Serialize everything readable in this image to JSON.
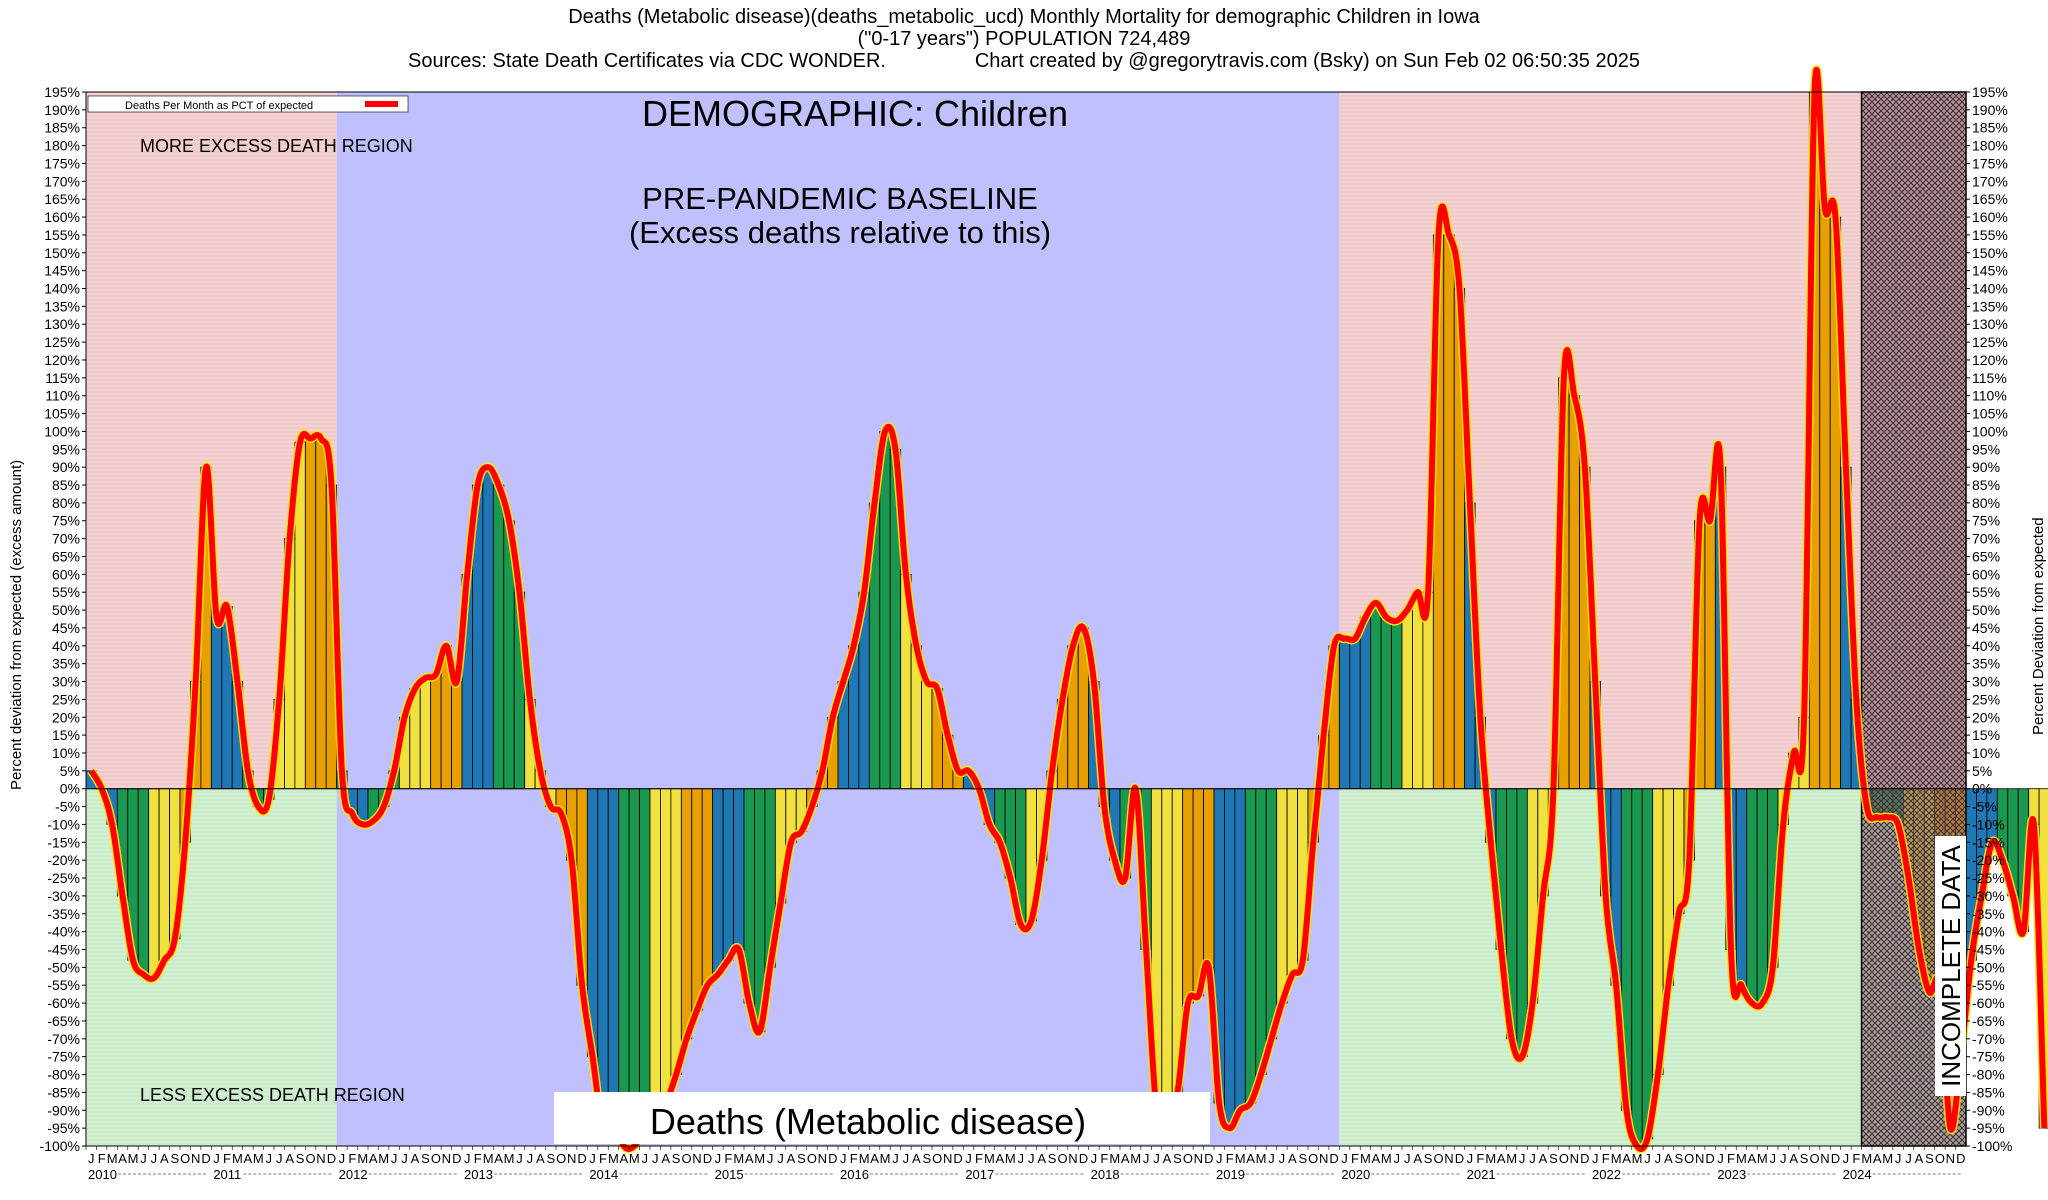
{
  "header": {
    "line1": "Deaths (Metabolic disease)(deaths_metabolic_ucd) Monthly Mortality for demographic Children in Iowa",
    "line2": "(\"0-17 years\") POPULATION 724,489",
    "line3": "Sources: State Death Certificates via CDC WONDER.                Chart created by @gregorytravis.com (Bsky) on Sun Feb 02 06:50:35 2025"
  },
  "annotations": {
    "demographic": "DEMOGRAPHIC: Children",
    "baseline_1": "PRE-PANDEMIC BASELINE",
    "baseline_2": "(Excess deaths relative to this)",
    "more_region": "MORE EXCESS DEATH REGION",
    "less_region": "LESS EXCESS DEATH REGION",
    "incomplete": "INCOMPLETE DATA",
    "bottom_label": "Deaths (Metabolic disease)",
    "legend": "Deaths Per Month as PCT of expected"
  },
  "axes": {
    "ylabel_left": "Percent deviation from expected (excess amount)",
    "ylabel_right": "Percent Deviation from expected"
  },
  "colors": {
    "pre_bg": "#c0c0ff",
    "excess_bg": "#f0c8c8",
    "deficit_bg": "#c8ecc8",
    "line": "#ff0000",
    "bar_cycle": [
      "#1f77b4",
      "#1f77b4",
      "#1f77b4",
      "#1a9850",
      "#1a9850",
      "#1a9850",
      "#f0e040",
      "#f0e040",
      "#f0e040",
      "#e8a000",
      "#e8a000",
      "#e8a000"
    ]
  },
  "chart_data": {
    "type": "bar",
    "title": "Deaths (Metabolic disease)(deaths_metabolic_ucd) Monthly Mortality for demographic Children in Iowa",
    "ylabel": "Percent deviation from expected (excess amount)",
    "ylim": [
      -100,
      195
    ],
    "ytick_step": 5,
    "start": "2010-01",
    "month_letters": [
      "J",
      "F",
      "M",
      "A",
      "M",
      "J",
      "J",
      "A",
      "S",
      "O",
      "N",
      "D"
    ],
    "years": [
      "2010",
      "2011",
      "2012",
      "2013",
      "2014",
      "2015",
      "2016",
      "2017",
      "2018",
      "2019",
      "2020",
      "2021",
      "2022",
      "2023",
      "2024"
    ],
    "pre_pandemic_range": [
      "2012-01",
      "2019-12"
    ],
    "incomplete_from": "2024-03",
    "series": [
      {
        "name": "Deaths Per Month as PCT of expected",
        "values": [
          5,
          0,
          -10,
          -30,
          -48,
          -52,
          -53,
          -48,
          -42,
          -15,
          30,
          90,
          48,
          51,
          30,
          5,
          -5,
          -3,
          25,
          70,
          97,
          98,
          98,
          85,
          5,
          -7,
          -10,
          -9,
          -5,
          5,
          20,
          28,
          31,
          32,
          40,
          30,
          60,
          85,
          90,
          85,
          75,
          55,
          25,
          5,
          -5,
          -7,
          -20,
          -55,
          -75,
          -95,
          -92,
          -100,
          -100,
          -95,
          -90,
          -88,
          -80,
          -70,
          -62,
          -55,
          -52,
          -48,
          -45,
          -60,
          -68,
          -50,
          -32,
          -15,
          -12,
          -5,
          5,
          20,
          30,
          40,
          55,
          80,
          100,
          95,
          60,
          40,
          30,
          28,
          15,
          5,
          5,
          0,
          -10,
          -15,
          -25,
          -38,
          -37,
          -20,
          5,
          25,
          40,
          45,
          30,
          -5,
          -20,
          -25,
          0,
          -45,
          -90,
          -92,
          -85,
          -60,
          -58,
          -50,
          -88,
          -95,
          -90,
          -88,
          -80,
          -70,
          -60,
          -52,
          -48,
          -15,
          15,
          40,
          42,
          42,
          48,
          52,
          48,
          47,
          50,
          55,
          55,
          155,
          155,
          140,
          80,
          20,
          -15,
          -45,
          -70,
          -75,
          -60,
          -30,
          0,
          115,
          110,
          90,
          30,
          -30,
          -55,
          -90,
          -100,
          -98,
          -80,
          -55,
          -35,
          -20,
          75,
          75,
          90,
          -45,
          -55,
          -60,
          -60,
          -50,
          -10,
          10,
          20,
          195,
          162,
          160,
          90,
          25,
          -5,
          -8,
          -8,
          -10,
          -25,
          -45,
          -57,
          -55,
          -95,
          -75,
          -48,
          -30,
          -15,
          -20,
          -30,
          -40,
          -10,
          -95
        ]
      }
    ]
  }
}
